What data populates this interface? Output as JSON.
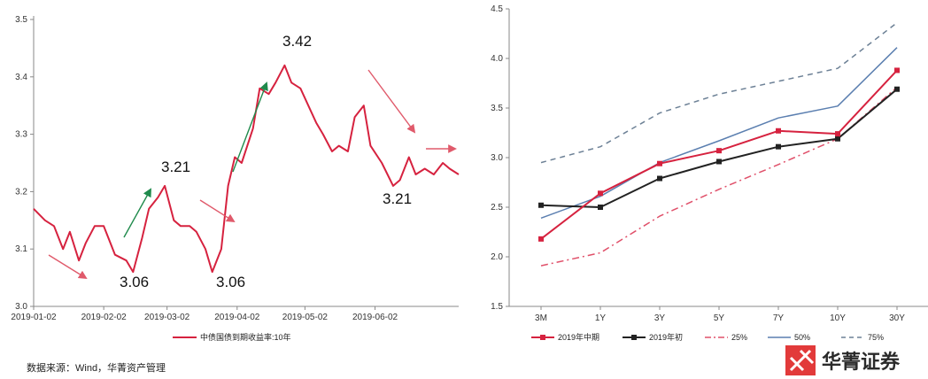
{
  "chart_data": [
    {
      "type": "line",
      "x": [
        "2019-01-02",
        "2019-01-07",
        "2019-01-11",
        "2019-01-15",
        "2019-01-18",
        "2019-01-22",
        "2019-01-25",
        "2019-01-29",
        "2019-02-02",
        "2019-02-07",
        "2019-02-12",
        "2019-02-15",
        "2019-02-19",
        "2019-02-22",
        "2019-02-26",
        "2019-03-01",
        "2019-03-05",
        "2019-03-08",
        "2019-03-12",
        "2019-03-15",
        "2019-03-19",
        "2019-03-22",
        "2019-03-26",
        "2019-03-29",
        "2019-04-01",
        "2019-04-04",
        "2019-04-09",
        "2019-04-12",
        "2019-04-16",
        "2019-04-19",
        "2019-04-23",
        "2019-04-26",
        "2019-04-30",
        "2019-05-07",
        "2019-05-10",
        "2019-05-14",
        "2019-05-17",
        "2019-05-21",
        "2019-05-24",
        "2019-05-28",
        "2019-05-31",
        "2019-06-05",
        "2019-06-10",
        "2019-06-13",
        "2019-06-17",
        "2019-06-20",
        "2019-06-24",
        "2019-06-28",
        "2019-07-02",
        "2019-07-05",
        "2019-07-09"
      ],
      "values": [
        3.17,
        3.15,
        3.14,
        3.1,
        3.13,
        3.08,
        3.11,
        3.14,
        3.14,
        3.09,
        3.08,
        3.06,
        3.12,
        3.17,
        3.19,
        3.21,
        3.15,
        3.14,
        3.14,
        3.13,
        3.1,
        3.06,
        3.1,
        3.21,
        3.26,
        3.25,
        3.31,
        3.38,
        3.37,
        3.39,
        3.42,
        3.39,
        3.38,
        3.32,
        3.3,
        3.27,
        3.28,
        3.27,
        3.33,
        3.35,
        3.28,
        3.25,
        3.21,
        3.22,
        3.26,
        3.23,
        3.24,
        3.23,
        3.25,
        3.24,
        3.23
      ],
      "series": [
        {
          "name": "中债国债到期收益率:10年",
          "color": "#d6223f"
        }
      ],
      "ylim": [
        3.0,
        3.5
      ],
      "yticks": [
        "3.0",
        "3.1",
        "3.2",
        "3.3",
        "3.4",
        "3.5"
      ],
      "xticks": [
        "2019-01-02",
        "2019-02-02",
        "2019-03-02",
        "2019-04-02",
        "2019-05-02",
        "2019-06-02"
      ],
      "annotations": [
        "3.42",
        "3.21",
        "3.21",
        "3.06",
        "3.06"
      ],
      "trend_arrows": [
        {
          "color": "#e05a6b",
          "direction": "down"
        },
        {
          "color": "#1f8a4c",
          "direction": "up"
        },
        {
          "color": "#e05a6b",
          "direction": "down"
        },
        {
          "color": "#1f8a4c",
          "direction": "up"
        },
        {
          "color": "#e05a6b",
          "direction": "down"
        },
        {
          "color": "#e05a6b",
          "direction": "flat"
        }
      ],
      "grid": false,
      "legend": "bottom",
      "source": "数据来源：Wind，华菁资产管理"
    },
    {
      "type": "line",
      "categories": [
        "3M",
        "1Y",
        "3Y",
        "5Y",
        "7Y",
        "10Y",
        "30Y"
      ],
      "ylim": [
        1.5,
        4.5
      ],
      "yticks": [
        "1.5",
        "2.0",
        "2.5",
        "3.0",
        "3.5",
        "4.0",
        "4.5"
      ],
      "series": [
        {
          "name": "2019年中期",
          "values": [
            2.18,
            2.64,
            2.94,
            3.07,
            3.27,
            3.24,
            3.88
          ],
          "color": "#d6223f",
          "style": "solid-marker"
        },
        {
          "name": "2019年初",
          "values": [
            2.52,
            2.5,
            2.79,
            2.96,
            3.11,
            3.19,
            3.69
          ],
          "color": "#222222",
          "style": "solid-marker"
        },
        {
          "name": "25%",
          "values": [
            1.91,
            2.04,
            2.41,
            2.68,
            2.93,
            3.19,
            3.71
          ],
          "color": "#e0506a",
          "style": "dashdot"
        },
        {
          "name": "50%",
          "values": [
            2.39,
            2.61,
            2.95,
            3.17,
            3.4,
            3.52,
            4.11
          ],
          "color": "#5b7fb0",
          "style": "solid"
        },
        {
          "name": "75%",
          "values": [
            2.95,
            3.11,
            3.45,
            3.64,
            3.77,
            3.9,
            4.36
          ],
          "color": "#6d8196",
          "style": "dashed"
        }
      ],
      "grid": false,
      "legend": "bottom"
    }
  ],
  "brand": {
    "name": "华菁证券"
  }
}
